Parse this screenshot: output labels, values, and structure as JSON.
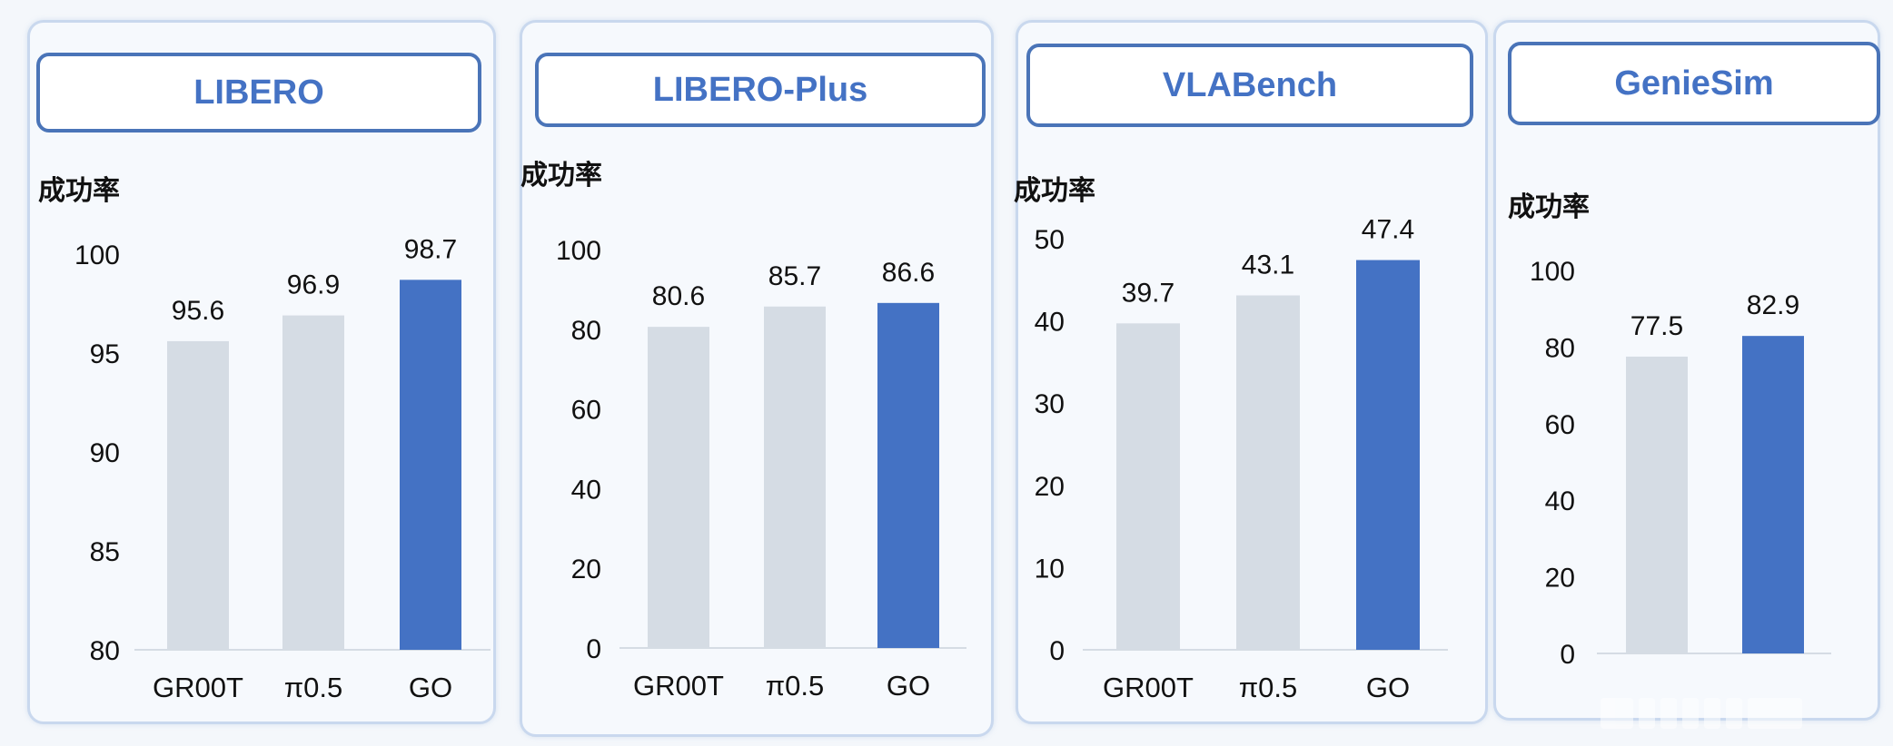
{
  "colors": {
    "baseline": "#d5dce4",
    "highlight": "#4472c4",
    "title": "#4472c4"
  },
  "chart_data": [
    {
      "type": "bar",
      "title": "LIBERO",
      "ylabel": "成功率",
      "categories": [
        "GR00T",
        "π0.5",
        "GO"
      ],
      "values": [
        95.6,
        96.9,
        98.7
      ],
      "value_labels": [
        "95.6",
        "96.9",
        "98.7"
      ],
      "ylim": [
        80,
        100
      ],
      "yticks": [
        "80",
        "85",
        "90",
        "95",
        "100"
      ],
      "highlight_index": 2,
      "grid": false
    },
    {
      "type": "bar",
      "title": "LIBERO-Plus",
      "ylabel": "成功率",
      "categories": [
        "GR00T",
        "π0.5",
        "GO"
      ],
      "values": [
        80.6,
        85.7,
        86.6
      ],
      "value_labels": [
        "80.6",
        "85.7",
        "86.6"
      ],
      "ylim": [
        0,
        100
      ],
      "yticks": [
        "0",
        "20",
        "40",
        "60",
        "80",
        "100"
      ],
      "highlight_index": 2,
      "grid": false
    },
    {
      "type": "bar",
      "title": "VLABench",
      "ylabel": "成功率",
      "categories": [
        "GR00T",
        "π0.5",
        "GO"
      ],
      "values": [
        39.7,
        43.1,
        47.4
      ],
      "value_labels": [
        "39.7",
        "43.1",
        "47.4"
      ],
      "ylim": [
        0,
        50
      ],
      "yticks": [
        "0",
        "10",
        "20",
        "30",
        "40",
        "50"
      ],
      "highlight_index": 2,
      "grid": false
    },
    {
      "type": "bar",
      "title": "GenieSim",
      "ylabel": "成功率",
      "categories": [
        "",
        ""
      ],
      "values": [
        77.5,
        82.9
      ],
      "value_labels": [
        "77.5",
        "82.9"
      ],
      "ylim": [
        0,
        100
      ],
      "yticks": [
        "0",
        "20",
        "40",
        "60",
        "80",
        "100"
      ],
      "highlight_index": 1,
      "grid": false
    }
  ]
}
